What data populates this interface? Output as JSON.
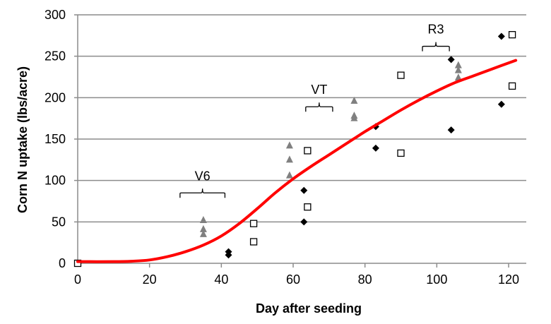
{
  "chart_data": {
    "type": "scatter",
    "title": "",
    "xlabel": "Day after seeding",
    "ylabel": "Corn N uptake (lbs/acre)",
    "xlim": [
      0,
      125
    ],
    "ylim": [
      0,
      300
    ],
    "x_ticks": [
      0,
      20,
      40,
      60,
      80,
      100,
      120
    ],
    "y_ticks": [
      0,
      50,
      100,
      150,
      200,
      250,
      300
    ],
    "grid": "horizontal",
    "legend": "none",
    "series": [
      {
        "name": "triangle-series",
        "marker": "triangle",
        "color": "#808080",
        "points": [
          [
            0,
            0
          ],
          [
            35,
            52
          ],
          [
            35,
            41
          ],
          [
            35,
            35
          ],
          [
            59,
            142
          ],
          [
            59,
            125
          ],
          [
            59,
            106
          ],
          [
            77,
            196
          ],
          [
            77,
            178
          ],
          [
            77,
            175
          ],
          [
            106,
            239
          ],
          [
            106,
            233
          ],
          [
            106,
            224
          ]
        ]
      },
      {
        "name": "diamond-series",
        "marker": "diamond",
        "color": "#000000",
        "points": [
          [
            42,
            14
          ],
          [
            42,
            10
          ],
          [
            63,
            88
          ],
          [
            63,
            50
          ],
          [
            83,
            165
          ],
          [
            83,
            139
          ],
          [
            104,
            246
          ],
          [
            104,
            161
          ],
          [
            118,
            274
          ],
          [
            118,
            192
          ]
        ]
      },
      {
        "name": "square-series",
        "marker": "open-square",
        "color": "#000000",
        "points": [
          [
            0,
            0
          ],
          [
            49,
            48
          ],
          [
            49,
            26
          ],
          [
            64,
            136
          ],
          [
            64,
            68
          ],
          [
            90,
            227
          ],
          [
            90,
            133
          ],
          [
            121,
            276
          ],
          [
            121,
            214
          ]
        ]
      },
      {
        "name": "fitted-curve",
        "type": "line",
        "color": "#ff0000",
        "points": [
          [
            0,
            2
          ],
          [
            10,
            2
          ],
          [
            15,
            2.5
          ],
          [
            20,
            4
          ],
          [
            25,
            8
          ],
          [
            30,
            14
          ],
          [
            35,
            22
          ],
          [
            40,
            33
          ],
          [
            45,
            48
          ],
          [
            50,
            66
          ],
          [
            55,
            85
          ],
          [
            60,
            102
          ],
          [
            65,
            117
          ],
          [
            70,
            131
          ],
          [
            75,
            145
          ],
          [
            80,
            159
          ],
          [
            85,
            172
          ],
          [
            90,
            185
          ],
          [
            95,
            197
          ],
          [
            100,
            208
          ],
          [
            105,
            218
          ],
          [
            110,
            226
          ],
          [
            115,
            234
          ],
          [
            122,
            245
          ]
        ]
      }
    ],
    "annotations": [
      {
        "label": "V6",
        "x_range": [
          28.5,
          41
        ],
        "y": 85
      },
      {
        "label": "VT",
        "x_range": [
          63.5,
          71
        ],
        "y": 189
      },
      {
        "label": "R3",
        "x_range": [
          96,
          103.5
        ],
        "y": 262
      }
    ]
  }
}
